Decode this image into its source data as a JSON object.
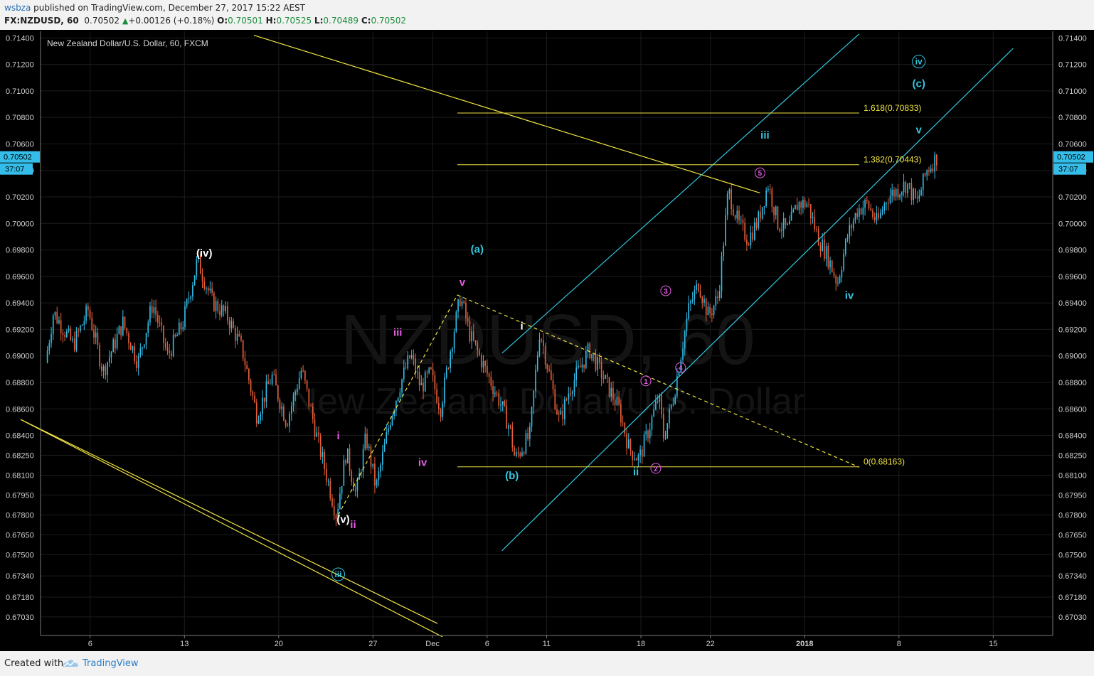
{
  "header": {
    "author": "wsbza",
    "published_text": " published on TradingView.com, December 27, 2017 15:22 AEST",
    "symbol": "FX:NZDUSD, 60",
    "last": "0.70502",
    "change": "+0.00126 (+0.18%)",
    "open_label": "O:",
    "open": "0.70501",
    "high_label": "H:",
    "high": "0.70525",
    "low_label": "L:",
    "low": "0.70489",
    "close_label": "C:",
    "close": "0.70502"
  },
  "footer": {
    "created_with": "Created with",
    "brand": "TradingView"
  },
  "chart_data": {
    "type": "candlestick",
    "title": "New Zealand Dollar/U.S. Dollar, 60, FXCM",
    "watermark_symbol": "NZDUSD, 60",
    "watermark_name": "New Zealand Dollar/U.S. Dollar",
    "colors": {
      "background": "#000000",
      "up": "#33bde8",
      "down": "#e8603a",
      "yellow": "#f0e442",
      "cyan": "#33c7e0",
      "magenta": "#e65ce6",
      "white": "#ffffff"
    },
    "x_axis": {
      "ticks": [
        "6",
        "13",
        "20",
        "27",
        "Dec",
        "6",
        "11",
        "18",
        "22",
        "2018",
        "8",
        "15"
      ],
      "bold": [
        false,
        false,
        false,
        false,
        false,
        false,
        false,
        false,
        false,
        true,
        false,
        false
      ]
    },
    "y_axis": {
      "ticks": [
        "0.71400",
        "0.71200",
        "0.71000",
        "0.70800",
        "0.70600",
        "0.70400",
        "0.70200",
        "0.70000",
        "0.69800",
        "0.69600",
        "0.69400",
        "0.69200",
        "0.69000",
        "0.68800",
        "0.68600",
        "0.68400",
        "0.68250",
        "0.68100",
        "0.67950",
        "0.67800",
        "0.67650",
        "0.67500",
        "0.67340",
        "0.67180",
        "0.67030"
      ],
      "price_tag": "0.70502",
      "time_tag": "37:07",
      "range": [
        0.6689,
        0.7145
      ]
    },
    "price_path": [
      [
        0.688,
        0.6895
      ],
      [
        1.5,
        0.6933
      ],
      [
        3.5,
        0.6908
      ],
      [
        5,
        0.6935
      ],
      [
        6.5,
        0.6888
      ],
      [
        8.5,
        0.6925
      ],
      [
        10,
        0.6895
      ],
      [
        11.5,
        0.694
      ],
      [
        13,
        0.69
      ],
      [
        14.5,
        0.6924
      ],
      [
        16,
        0.6972
      ],
      [
        17.5,
        0.6941
      ],
      [
        19,
        0.693
      ],
      [
        20.5,
        0.6905
      ],
      [
        22,
        0.6855
      ],
      [
        23.5,
        0.6885
      ],
      [
        25,
        0.685
      ],
      [
        26.5,
        0.689
      ],
      [
        28,
        0.684
      ],
      [
        30,
        0.678
      ],
      [
        31,
        0.6828
      ],
      [
        32,
        0.6795
      ],
      [
        33,
        0.6839
      ],
      [
        34,
        0.68
      ],
      [
        35.5,
        0.6855
      ],
      [
        36.5,
        0.688
      ],
      [
        37.5,
        0.6901
      ],
      [
        38.5,
        0.6876
      ],
      [
        39.5,
        0.6887
      ],
      [
        40.5,
        0.686
      ],
      [
        41.5,
        0.6905
      ],
      [
        42.5,
        0.6945
      ],
      [
        43.5,
        0.6915
      ],
      [
        45,
        0.689
      ],
      [
        46.5,
        0.6865
      ],
      [
        47.5,
        0.6845
      ],
      [
        48,
        0.6822
      ],
      [
        49.5,
        0.684
      ],
      [
        50.5,
        0.692
      ],
      [
        51.5,
        0.6885
      ],
      [
        52.5,
        0.685
      ],
      [
        53.5,
        0.6875
      ],
      [
        54.5,
        0.689
      ],
      [
        55.5,
        0.6905
      ],
      [
        56.5,
        0.689
      ],
      [
        57.5,
        0.6875
      ],
      [
        58.5,
        0.686
      ],
      [
        59.5,
        0.683
      ],
      [
        60.5,
        0.6822
      ],
      [
        61.5,
        0.6845
      ],
      [
        62.5,
        0.687
      ],
      [
        63,
        0.6838
      ],
      [
        64,
        0.687
      ],
      [
        65.5,
        0.6935
      ],
      [
        66.5,
        0.6955
      ],
      [
        67.5,
        0.693
      ],
      [
        68.5,
        0.6945
      ],
      [
        69.5,
        0.7025
      ],
      [
        70.5,
        0.7
      ],
      [
        71.5,
        0.6988
      ],
      [
        72.5,
        0.7002
      ],
      [
        73.5,
        0.703
      ],
      [
        74.5,
        0.7
      ],
      [
        75.5,
        0.6995
      ],
      [
        76.5,
        0.7015
      ],
      [
        77.5,
        0.7015
      ],
      [
        78.5,
        0.699
      ],
      [
        79.5,
        0.6975
      ],
      [
        80.5,
        0.6955
      ],
      [
        81.5,
        0.699
      ],
      [
        82.5,
        0.701
      ],
      [
        83.5,
        0.7015
      ],
      [
        84.5,
        0.7
      ],
      [
        85.5,
        0.702
      ],
      [
        86.5,
        0.7025
      ],
      [
        87.5,
        0.703
      ],
      [
        88.5,
        0.7015
      ],
      [
        89.5,
        0.704
      ],
      [
        90.5,
        0.705
      ]
    ],
    "trendlines": [
      {
        "color": "yellow",
        "dash": false,
        "from": [
          -2,
          0.6852
        ],
        "to": [
          40,
          0.6698
        ]
      },
      {
        "color": "yellow",
        "dash": false,
        "from": [
          -2,
          0.6852
        ],
        "to": [
          40.5,
          0.6688
        ]
      },
      {
        "color": "yellow",
        "dash": false,
        "from": [
          21.5,
          0.7142
        ],
        "to": [
          72.5,
          0.7023
        ]
      },
      {
        "color": "cyan",
        "dash": false,
        "from": [
          46.5,
          0.6753
        ],
        "to": [
          98,
          0.7132
        ]
      },
      {
        "color": "cyan",
        "dash": false,
        "from": [
          46.5,
          0.6902
        ],
        "to": [
          82.5,
          0.7143
        ]
      },
      {
        "color": "yellow",
        "dash": true,
        "from": [
          30,
          0.678
        ],
        "to": [
          42,
          0.6946
        ]
      },
      {
        "color": "yellow",
        "dash": true,
        "from": [
          42,
          0.6946
        ],
        "to": [
          82.5,
          0.6816
        ]
      }
    ],
    "fib_levels": [
      {
        "label": "1.618(0.70833)",
        "value": 0.70833,
        "from": 42,
        "to": 82.5
      },
      {
        "label": "1.382(0.70443)",
        "value": 0.70443,
        "from": 42,
        "to": 82.5
      },
      {
        "label": "0(0.68163)",
        "value": 0.68163,
        "from": 42,
        "to": 82.5
      }
    ],
    "annotations": [
      {
        "text": "(iv)",
        "color": "white",
        "x": 16.5,
        "y": 0.6975
      },
      {
        "text": "(v)",
        "color": "white",
        "x": 30.5,
        "y": 0.6774
      },
      {
        "text": "iii",
        "color": "cyan",
        "x": 30,
        "y": 0.6733,
        "circled": true
      },
      {
        "text": "(a)",
        "color": "cyan",
        "x": 44,
        "y": 0.6978
      },
      {
        "text": "(b)",
        "color": "cyan",
        "x": 47.5,
        "y": 0.6807
      },
      {
        "text": "(c)",
        "color": "cyan",
        "x": 88.5,
        "y": 0.7103
      },
      {
        "text": "iv",
        "color": "cyan",
        "x": 88.5,
        "y": 0.712,
        "circled": true
      },
      {
        "text": "i",
        "color": "magenta",
        "x": 30,
        "y": 0.6837
      },
      {
        "text": "ii",
        "color": "magenta",
        "x": 31.5,
        "y": 0.677
      },
      {
        "text": "iii",
        "color": "magenta",
        "x": 36,
        "y": 0.6915
      },
      {
        "text": "iv",
        "color": "magenta",
        "x": 38.5,
        "y": 0.6817
      },
      {
        "text": "v",
        "color": "magenta",
        "x": 42.5,
        "y": 0.6953
      },
      {
        "text": "i",
        "color": "white",
        "x": 48.5,
        "y": 0.692
      },
      {
        "text": "ii",
        "color": "cyan",
        "x": 60,
        "y": 0.681
      },
      {
        "text": "iii",
        "color": "cyan",
        "x": 73,
        "y": 0.7064
      },
      {
        "text": "iv",
        "color": "cyan",
        "x": 81.5,
        "y": 0.6943
      },
      {
        "text": "v",
        "color": "cyan",
        "x": 88.5,
        "y": 0.7068
      },
      {
        "text": "1",
        "color": "magenta",
        "x": 61,
        "y": 0.6879,
        "circled": true
      },
      {
        "text": "2",
        "color": "magenta",
        "x": 62,
        "y": 0.6813,
        "circled": true
      },
      {
        "text": "3",
        "color": "magenta",
        "x": 63,
        "y": 0.6947,
        "circled": true
      },
      {
        "text": "4",
        "color": "magenta",
        "x": 64.5,
        "y": 0.6889,
        "circled": true
      },
      {
        "text": "5",
        "color": "magenta",
        "x": 72.5,
        "y": 0.7036,
        "circled": true
      }
    ]
  }
}
